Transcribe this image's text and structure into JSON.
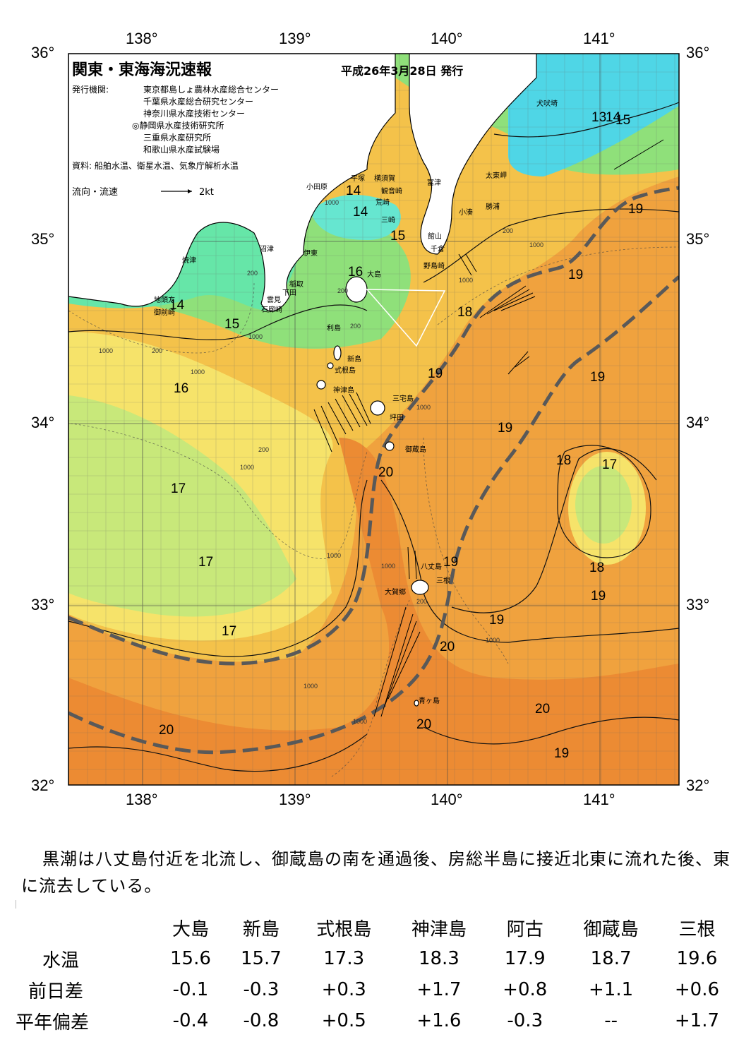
{
  "map": {
    "title": "関東・東海海況速報",
    "issue_date": "平成26年3月28日 発行",
    "publisher_label": "発行機関:",
    "publishers": [
      "東京都島しょ農林水産総合センター",
      "千葉県水産総合研究センター",
      "神奈川県水産技術センター",
      "◎静岡県水産技術研究所",
      "三重県水産研究所",
      "和歌山県水産試験場"
    ],
    "source": "資料: 船舶水温、衛星水温、気象庁解析水温",
    "legend_flow": "流向・流速",
    "legend_speed": "2kt",
    "lon_labels": [
      "138°",
      "139°",
      "140°",
      "141°"
    ],
    "lat_labels": [
      "36°",
      "35°",
      "34°",
      "33°",
      "32°"
    ],
    "places": {
      "inubozaki": "犬吠埼",
      "taitomisaki": "太東岬",
      "katsuura": "勝浦",
      "kominato": "小湊",
      "futtsu": "富津",
      "tateyama": "館山",
      "chikura": "千倉",
      "nojimazaki": "野島崎",
      "yokosuka": "横須賀",
      "kannonzaki": "観音崎",
      "hiratsuka": "平塚",
      "odawara": "小田原",
      "arasaki": "荒崎",
      "misaki": "三崎",
      "numazu": "沼津",
      "ito": "伊東",
      "yaizu": "焼津",
      "inatori": "稲取",
      "shimoda": "下田",
      "kumomi": "雲見",
      "irozaki": "石廊崎",
      "chikyugaku": "地頭方",
      "omaezaki": "御前崎",
      "oshima": "大島",
      "toshima": "利島",
      "niijima": "新島",
      "shikinejima": "式根島",
      "kozushima": "神津島",
      "miyakejima": "三宅島",
      "tsubota": "坪田",
      "mikurajima": "御蔵島",
      "hachijojima": "八丈島",
      "sanne": "三根",
      "okago": "大賀郷",
      "aogashima": "青ヶ島"
    },
    "isotherms": [
      "13",
      "14",
      "15",
      "14",
      "14",
      "15",
      "16",
      "14",
      "15",
      "16",
      "17",
      "17",
      "17",
      "18",
      "19",
      "19",
      "19",
      "19",
      "19",
      "20",
      "18",
      "17",
      "18",
      "19",
      "19",
      "20",
      "20",
      "20",
      "19",
      "20",
      "19"
    ],
    "depths": [
      "1000",
      "200",
      "1000",
      "200",
      "200",
      "1000",
      "200",
      "1000",
      "1000",
      "200",
      "1000",
      "1000",
      "1000",
      "1000",
      "1000",
      "1000",
      "1000",
      "1000",
      "200",
      "200"
    ],
    "colors": {
      "cold": "#4fd6e6",
      "cool": "#66e6a8",
      "green": "#8fe07a",
      "yellow": "#f6e36a",
      "warm": "#f4c24a",
      "hot": "#f0a23e",
      "kuroshio": "#ec8b33",
      "land": "#ffffff",
      "axis_line": "#595959"
    }
  },
  "summary": "黒潮は八丈島付近を北流し、御蔵島の南を通過後、房総半島に接近北東に流れた後、東に流去している。",
  "table": {
    "columns": [
      "大島",
      "新島",
      "式根島",
      "神津島",
      "阿古",
      "御蔵島",
      "三根"
    ],
    "rows": [
      {
        "label": "水温",
        "values": [
          "15.6",
          "15.7",
          "17.3",
          "18.3",
          "17.9",
          "18.7",
          "19.6"
        ]
      },
      {
        "label": "前日差",
        "values": [
          "-0.1",
          "-0.3",
          "+0.3",
          "+1.7",
          "+0.8",
          "+1.1",
          "+0.6"
        ]
      },
      {
        "label": "平年偏差",
        "values": [
          "-0.4",
          "-0.8",
          "+0.5",
          "+1.6",
          "-0.3",
          "--",
          "+1.7"
        ]
      }
    ]
  }
}
